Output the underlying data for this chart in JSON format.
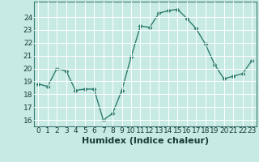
{
  "xlabel": "Humidex (Indice chaleur)",
  "ylabel": "",
  "x_values": [
    0,
    1,
    2,
    3,
    4,
    5,
    6,
    7,
    8,
    9,
    10,
    11,
    12,
    13,
    14,
    15,
    16,
    17,
    18,
    19,
    20,
    21,
    22,
    23
  ],
  "y_values": [
    18.8,
    18.6,
    20.0,
    19.8,
    18.3,
    18.4,
    18.4,
    16.0,
    16.5,
    18.3,
    20.9,
    23.3,
    23.2,
    24.3,
    24.5,
    24.6,
    23.9,
    23.1,
    21.9,
    20.3,
    19.2,
    19.4,
    19.6,
    20.6
  ],
  "line_color": "#2e7d6e",
  "marker": "D",
  "marker_size": 2.5,
  "bg_color": "#c8eae4",
  "grid_color": "#ffffff",
  "ylim": [
    15.5,
    25.2
  ],
  "yticks": [
    16,
    17,
    18,
    19,
    20,
    21,
    22,
    23,
    24
  ],
  "xlim": [
    -0.5,
    23.5
  ],
  "xticks": [
    0,
    1,
    2,
    3,
    4,
    5,
    6,
    7,
    8,
    9,
    10,
    11,
    12,
    13,
    14,
    15,
    16,
    17,
    18,
    19,
    20,
    21,
    22,
    23
  ],
  "tick_label_fontsize": 6.5,
  "xlabel_fontsize": 8,
  "line_width": 1.0,
  "axis_color": "#3a7a70",
  "text_color": "#1a3a35"
}
